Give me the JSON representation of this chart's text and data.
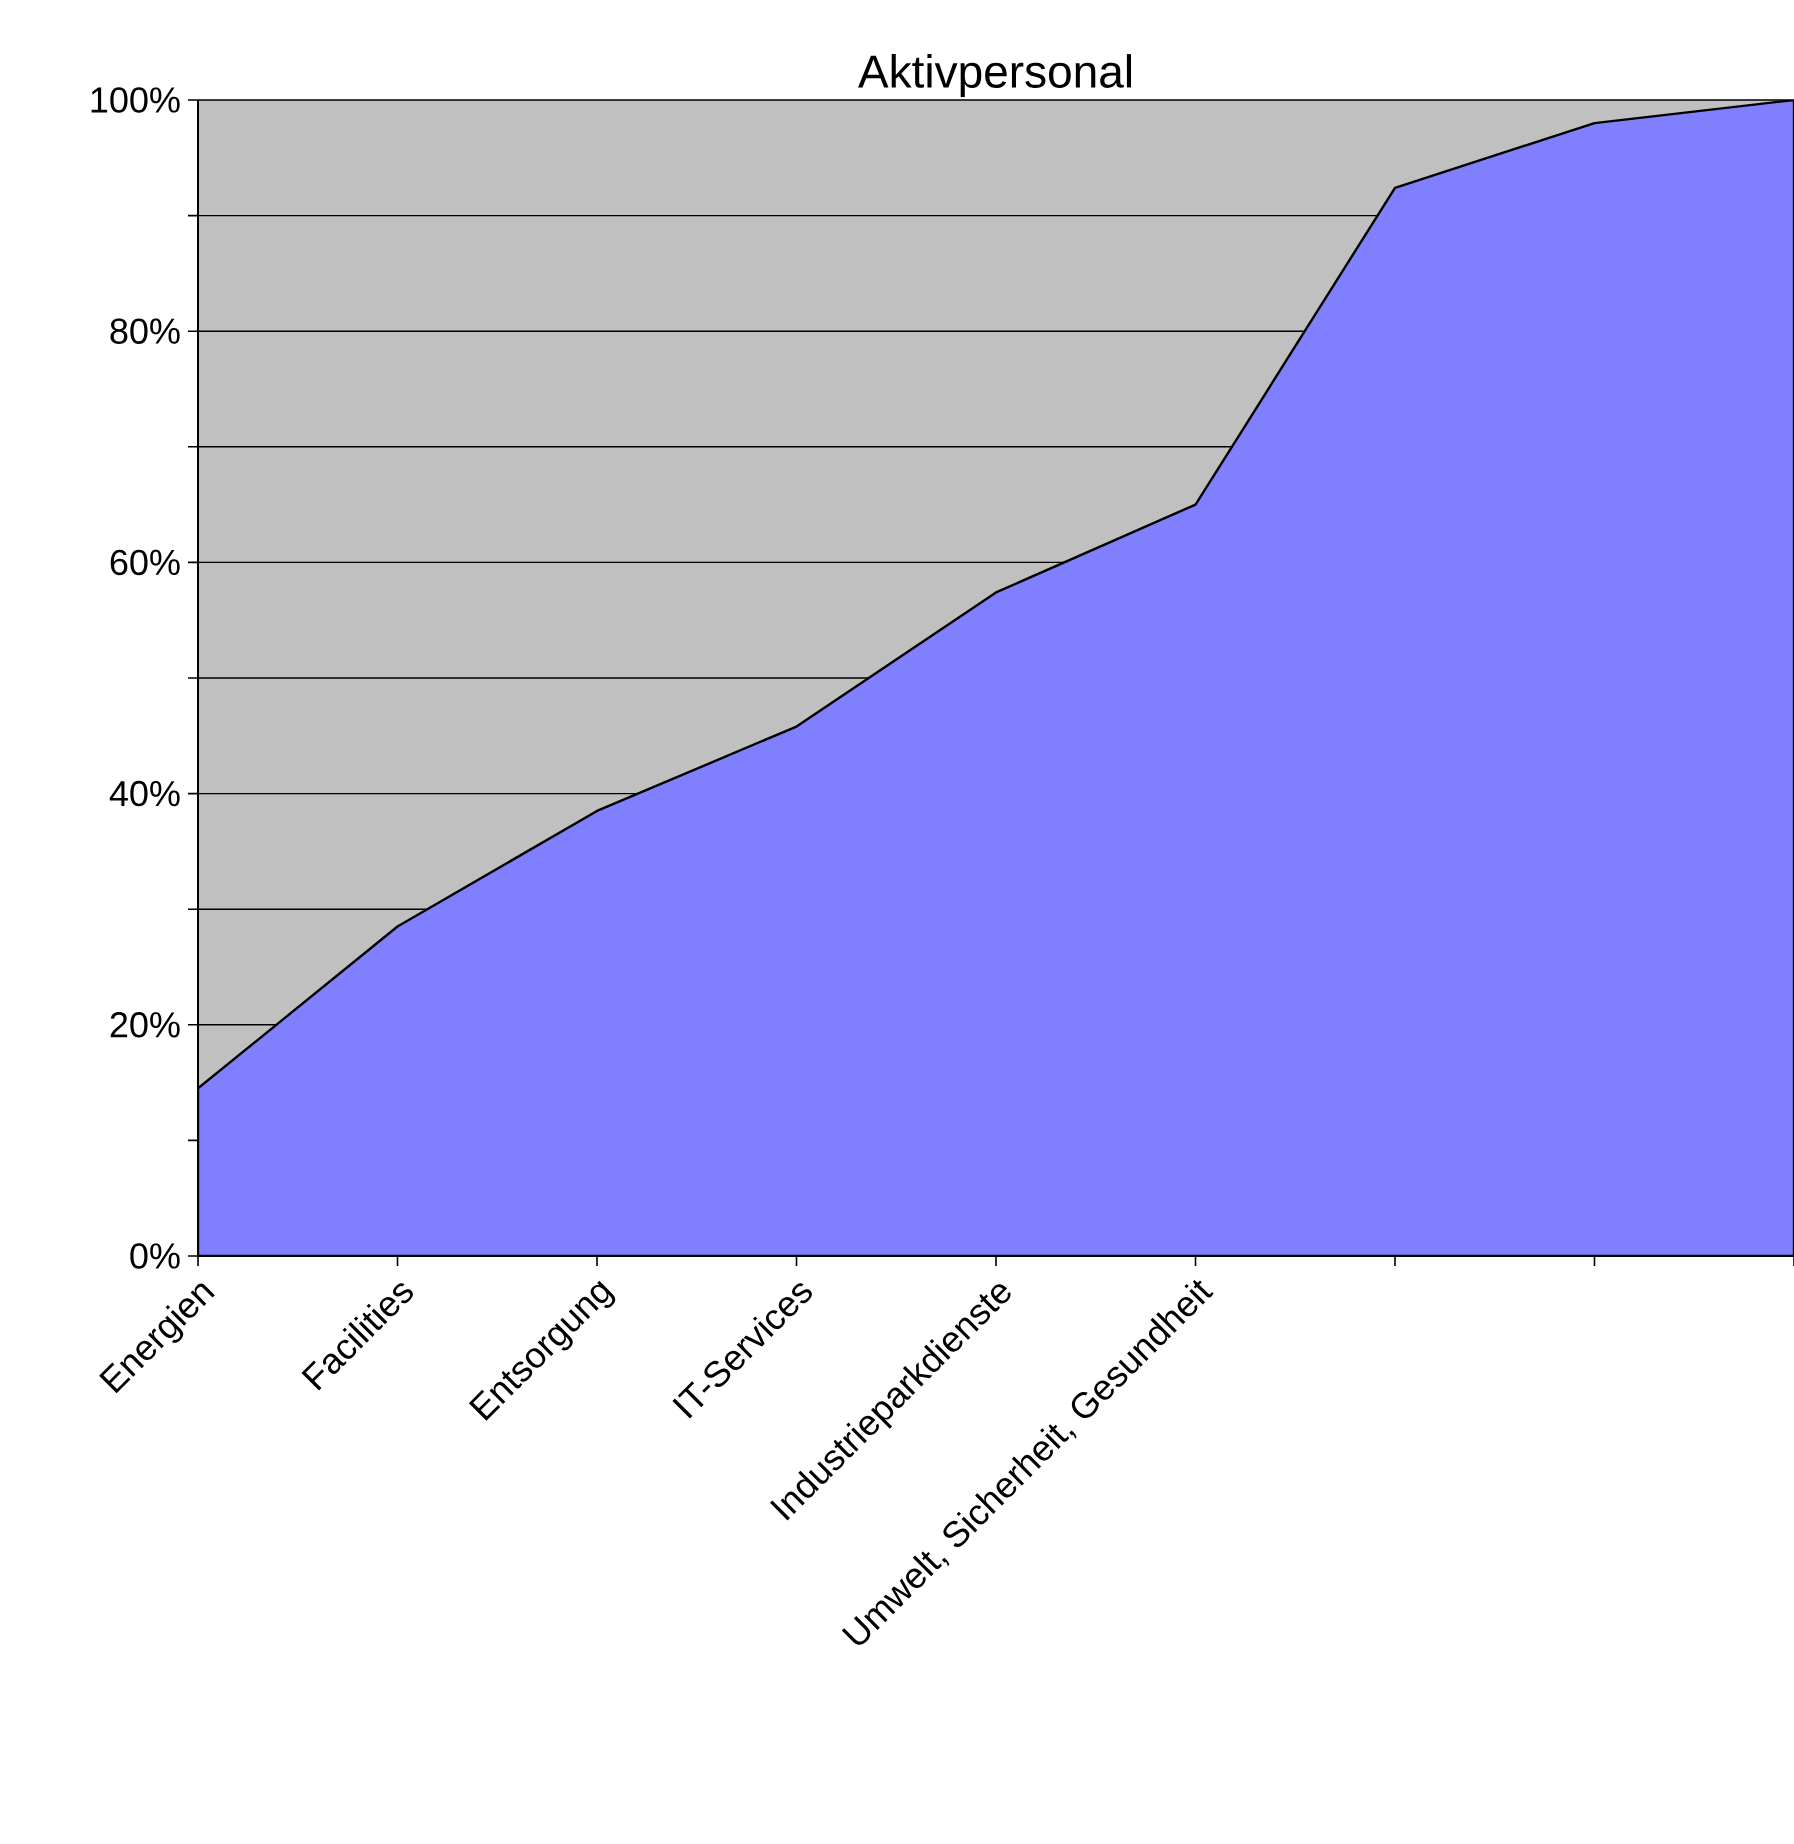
{
  "chart_data": {
    "type": "area",
    "title": "Aktivpersonal",
    "categories": [
      "Energien",
      "Facilities",
      "Entsorgung",
      "IT-Services",
      "Industrieparkdienste",
      "Umwelt, Sicherheit, Gesundheit",
      null,
      null,
      null
    ],
    "values": [
      14.5,
      28.5,
      38.5,
      45.8,
      57.4,
      65.0,
      92.4,
      98.0,
      100
    ],
    "color": "#8080ff",
    "ylim": [
      0,
      100
    ],
    "yticks": [
      {
        "value": 0,
        "label": "0%"
      },
      {
        "value": 10,
        "label": null
      },
      {
        "value": 20,
        "label": "20%"
      },
      {
        "value": 30,
        "label": null
      },
      {
        "value": 40,
        "label": "40%"
      },
      {
        "value": 50,
        "label": null
      },
      {
        "value": 60,
        "label": "60%"
      },
      {
        "value": 70,
        "label": null
      },
      {
        "value": 80,
        "label": "80%"
      },
      {
        "value": 90,
        "label": null
      },
      {
        "value": 100,
        "label": "100%"
      }
    ],
    "grid": "y"
  }
}
